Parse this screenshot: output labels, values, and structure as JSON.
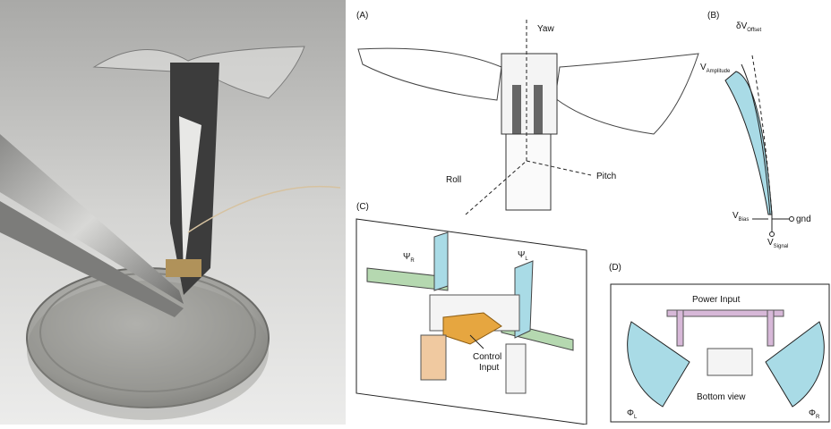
{
  "panel_a": {
    "label": "(A)",
    "axes": {
      "yaw": "Yaw",
      "roll": "Roll",
      "pitch": "Pitch"
    }
  },
  "panel_b": {
    "label": "(B)",
    "offset": {
      "symbol": "δV",
      "subscript": "Offset"
    },
    "amplitude": {
      "symbol": "V",
      "subscript": "Amplitude"
    },
    "bias": {
      "symbol": "V",
      "subscript": "Bias"
    },
    "ground": "gnd",
    "signal": {
      "symbol": "V",
      "subscript": "Signal"
    }
  },
  "panel_c": {
    "label": "(C)",
    "psi_r": {
      "symbol": "Ψ",
      "subscript": "R"
    },
    "psi_l": {
      "symbol": "Ψ",
      "subscript": "L"
    },
    "control_input": [
      "Control",
      "Input"
    ]
  },
  "panel_d": {
    "label": "(D)",
    "power_input": "Power Input",
    "bottom_view": "Bottom view",
    "phi_l": {
      "symbol": "Φ",
      "subscript": "L"
    },
    "phi_r": {
      "symbol": "Φ",
      "subscript": "R"
    }
  }
}
